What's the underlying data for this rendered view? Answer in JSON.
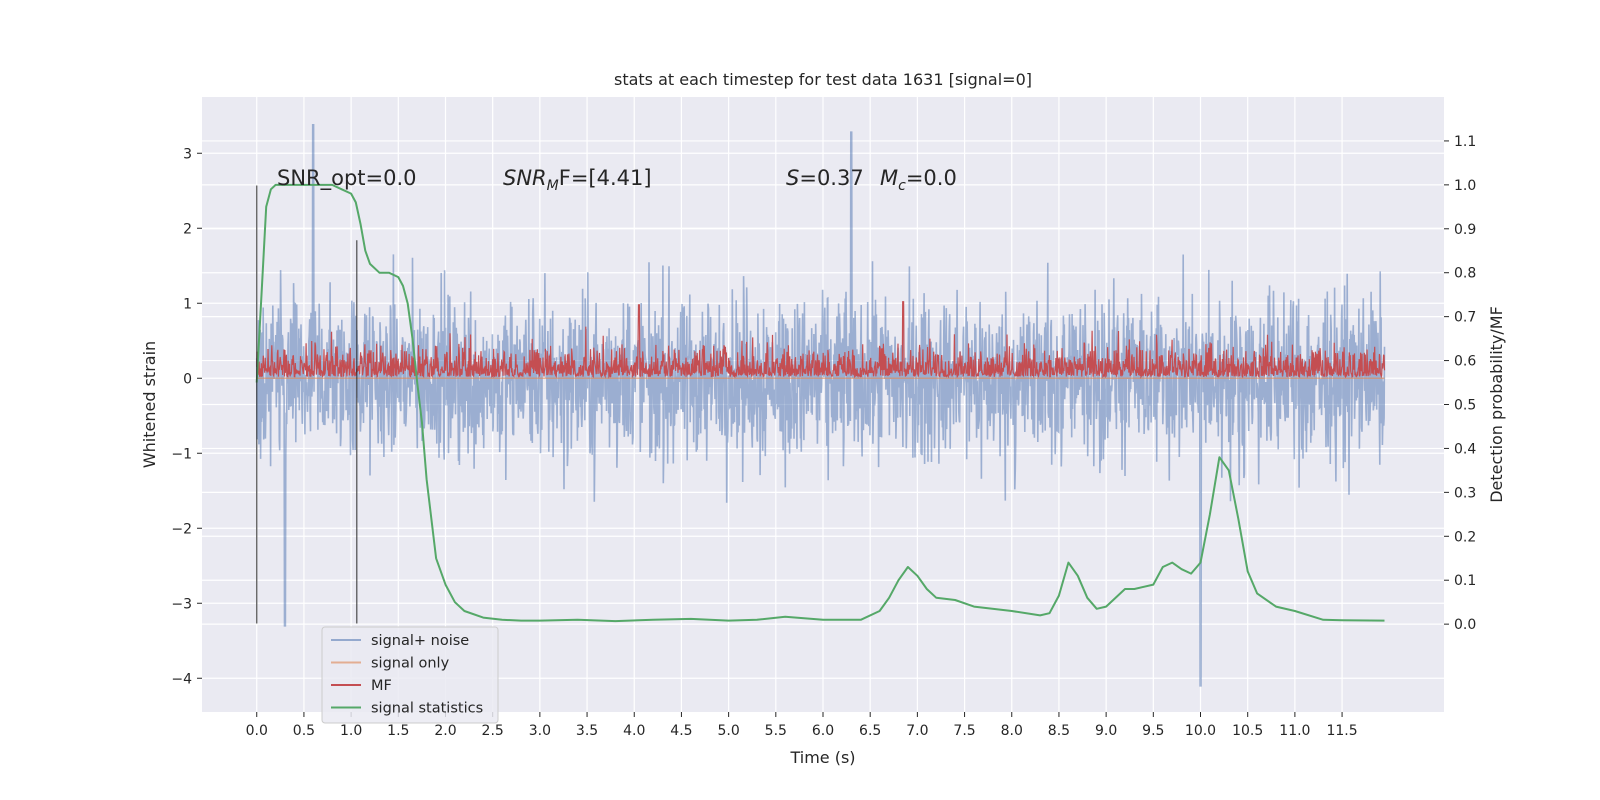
{
  "chart_data": {
    "type": "line",
    "title": "stats at each timestep for test data 1631 [signal=0]",
    "xlabel": "Time (s)",
    "ylabel": "Whitened strain",
    "y2label": "Detection probability/MF",
    "xlim": [
      -0.58,
      12.58
    ],
    "ylim": [
      -4.45,
      3.75
    ],
    "y2lim": [
      -0.2,
      1.2
    ],
    "xticks": [
      "0.0",
      "0.5",
      "1.0",
      "1.5",
      "2.0",
      "2.5",
      "3.0",
      "3.5",
      "4.0",
      "4.5",
      "5.0",
      "5.5",
      "6.0",
      "6.5",
      "7.0",
      "7.5",
      "8.0",
      "8.5",
      "9.0",
      "9.5",
      "10.0",
      "10.5",
      "11.0",
      "11.5"
    ],
    "yticks": [
      "3",
      "2",
      "1",
      "0",
      "−1",
      "−2",
      "−3",
      "−4"
    ],
    "y2ticks": [
      "1.1",
      "1.0",
      "0.9",
      "0.8",
      "0.7",
      "0.6",
      "0.5",
      "0.4",
      "0.3",
      "0.2",
      "0.1",
      "0.0"
    ],
    "grid": true,
    "legend_position": "lower-left",
    "colors": {
      "axes_bg": "#eaeaf2",
      "grid": "#ffffff",
      "noise": "#4c72b0",
      "signal": "#dd8452",
      "mf": "#c44e52",
      "stat": "#55a868",
      "marker": "#262626"
    },
    "annotations": [
      {
        "prefix": "SNR_opt=0.0",
        "italic": "",
        "sub": "",
        "rest": ""
      },
      {
        "prefix": "",
        "italic": "SNR",
        "sub": "M",
        "rest": "F=[4.41]"
      },
      {
        "prefix": "",
        "italic": "S",
        "sub": "",
        "rest": "=0.37   "
      },
      {
        "prefix": "",
        "italic": "M",
        "sub": "c",
        "rest": "=0.0"
      }
    ],
    "series": [
      {
        "name": "signal+ noise",
        "kind": "noise",
        "x_range": [
          0,
          11.95
        ],
        "amplitude": [
          -2.2,
          2.4
        ],
        "peaks": [
          [
            0.6,
            3.38
          ],
          [
            0.3,
            -3.3
          ],
          [
            6.3,
            3.28
          ],
          [
            10.0,
            -4.1
          ]
        ]
      },
      {
        "name": "signal only",
        "kind": "flat",
        "x_range": [
          0,
          11.95
        ],
        "values": [
          0,
          0
        ]
      },
      {
        "name": "MF",
        "kind": "mf",
        "x_range": [
          0,
          11.95
        ],
        "amplitude": [
          0.65,
          0.75
        ],
        "peaks": [
          [
            4.05,
            0.98
          ],
          [
            6.85,
            1.02
          ]
        ]
      },
      {
        "name": "signal statistics",
        "kind": "stat",
        "axis": "right",
        "x": [
          0,
          0.05,
          0.1,
          0.15,
          0.2,
          0.3,
          0.4,
          0.6,
          0.8,
          0.9,
          1.0,
          1.05,
          1.1,
          1.15,
          1.2,
          1.3,
          1.4,
          1.5,
          1.55,
          1.6,
          1.65,
          1.7,
          1.75,
          1.8,
          1.9,
          2.0,
          2.1,
          2.2,
          2.4,
          2.6,
          2.8,
          3.0,
          3.4,
          3.8,
          4.2,
          4.6,
          5.0,
          5.3,
          5.6,
          6.0,
          6.4,
          6.6,
          6.7,
          6.8,
          6.9,
          7.0,
          7.1,
          7.2,
          7.4,
          7.6,
          8.0,
          8.3,
          8.4,
          8.5,
          8.6,
          8.7,
          8.8,
          8.9,
          9.0,
          9.2,
          9.3,
          9.5,
          9.6,
          9.7,
          9.8,
          9.9,
          10.0,
          10.1,
          10.2,
          10.3,
          10.4,
          10.5,
          10.6,
          10.8,
          11.0,
          11.3,
          11.5,
          11.95
        ],
        "values": [
          0.55,
          0.75,
          0.95,
          0.99,
          1.0,
          1.0,
          1.0,
          1.0,
          1.0,
          0.99,
          0.98,
          0.96,
          0.91,
          0.85,
          0.82,
          0.8,
          0.8,
          0.79,
          0.77,
          0.73,
          0.65,
          0.55,
          0.46,
          0.33,
          0.15,
          0.09,
          0.05,
          0.03,
          0.015,
          0.01,
          0.008,
          0.008,
          0.01,
          0.007,
          0.01,
          0.012,
          0.008,
          0.01,
          0.017,
          0.01,
          0.01,
          0.03,
          0.06,
          0.1,
          0.13,
          0.11,
          0.08,
          0.06,
          0.055,
          0.04,
          0.03,
          0.02,
          0.025,
          0.065,
          0.14,
          0.11,
          0.06,
          0.035,
          0.04,
          0.08,
          0.08,
          0.09,
          0.13,
          0.14,
          0.125,
          0.115,
          0.14,
          0.25,
          0.38,
          0.35,
          0.24,
          0.12,
          0.07,
          0.04,
          0.03,
          0.01,
          0.009,
          0.008
        ]
      }
    ],
    "vertical_markers": [
      {
        "x": 0.0,
        "ymin": -3.27,
        "ymax": 2.57
      },
      {
        "x": 1.06,
        "ymin": -3.27,
        "ymax": 1.84
      }
    ]
  }
}
